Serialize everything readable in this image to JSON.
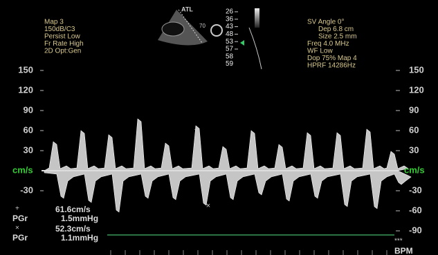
{
  "left_settings": [
    "Map 3",
    "150dB/C3",
    "Persist Low",
    "Fr Rate High",
    "2D Opt:Gen"
  ],
  "probe": {
    "brand": "ATL",
    "angle": "70"
  },
  "depth_scale": [
    26,
    36,
    43,
    48,
    53,
    57,
    58,
    59
  ],
  "right_settings": [
    "SV Angle 0°",
    "Dep 6.8  cm",
    "Size 2.5  mm",
    "Freq 4.0  MHz",
    "WF Low",
    "Dop 75%  Map 4",
    "HPRF 14286Hz"
  ],
  "velocity_axis": {
    "unit": "cm/s",
    "left_ticks": [
      150,
      120,
      90,
      60,
      30,
      -30
    ],
    "right_ticks": [
      150,
      120,
      90,
      60,
      30,
      -30,
      -60,
      -90
    ]
  },
  "measurements": [
    {
      "marker": "+",
      "velocity": "61.6cm/s",
      "label": "PGr",
      "gradient": "1.5mmHg"
    },
    {
      "marker": "×",
      "velocity": "52.3cm/s",
      "label": "PGr",
      "gradient": "1.1mmHg"
    }
  ],
  "heart_rate": {
    "value": "***",
    "unit": "BPM"
  }
}
